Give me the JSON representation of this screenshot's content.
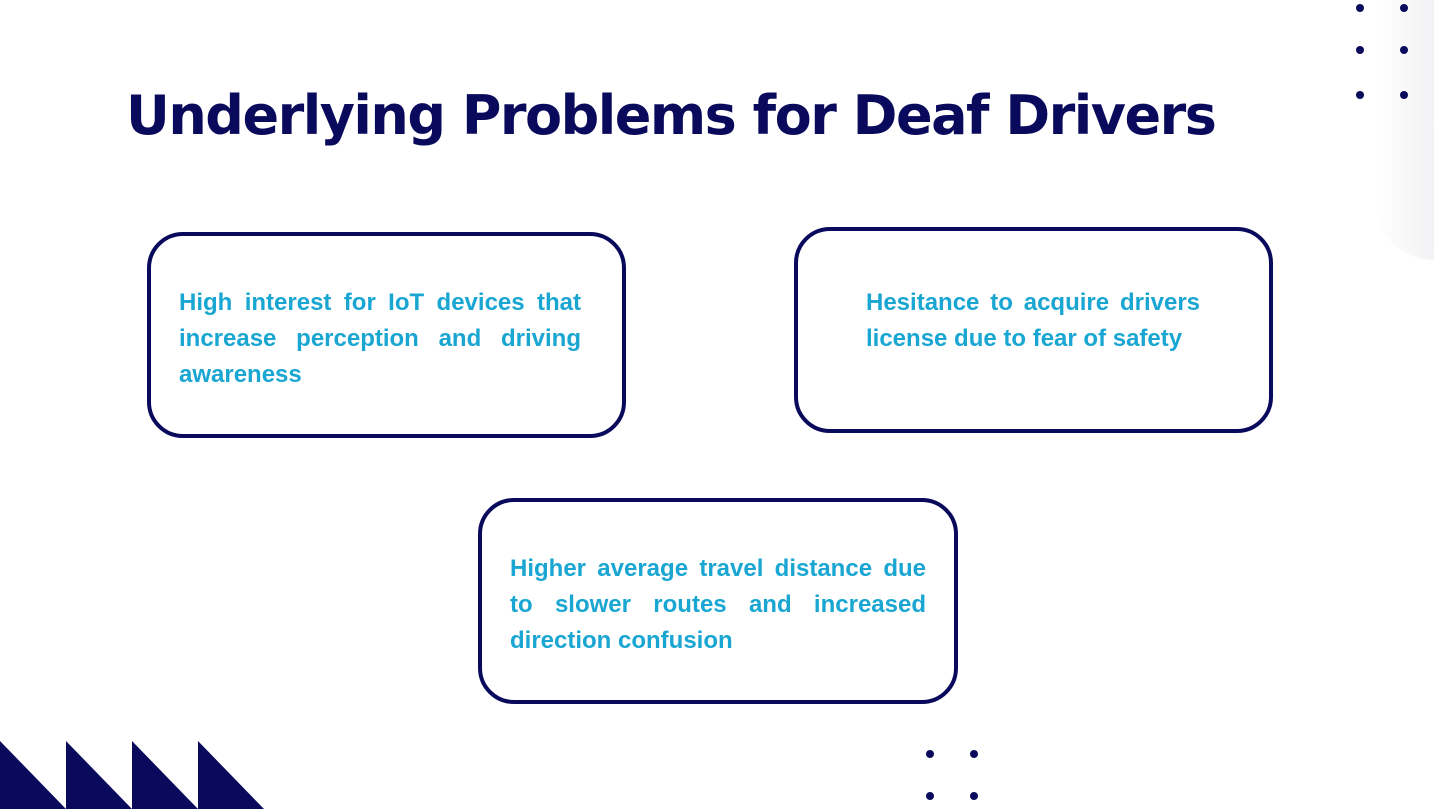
{
  "slide": {
    "title": "Underlying Problems for Deaf Drivers",
    "cards": [
      {
        "text": "High interest for IoT devices that increase perception and driving awareness"
      },
      {
        "text": "Hesitance to acquire drivers license due to fear of safety"
      },
      {
        "text": "Higher average travel distance due to slower routes and increased direction confusion"
      }
    ]
  },
  "colors": {
    "navy": "#0a0a5c",
    "accent_cyan": "#1aa6d2",
    "background": "#ffffff"
  },
  "decorations": {
    "top_right": "dot-grid-icon",
    "bottom_center": "dot-grid-icon",
    "bottom_left": "triangle-pattern-icon"
  }
}
